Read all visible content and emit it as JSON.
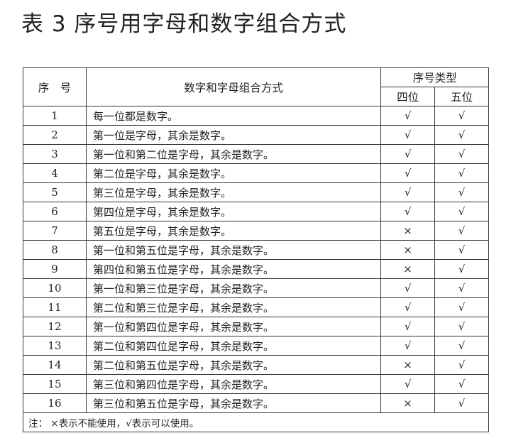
{
  "title": "表 3 序号用字母和数字组合方式",
  "table": {
    "headers": {
      "seq": "序　号",
      "combo": "数字和字母组合方式",
      "type_group": "序号类型",
      "four": "四位",
      "five": "五位"
    },
    "rows": [
      {
        "no": "1",
        "desc": "每一位都是数字。",
        "four": "√",
        "five": "√"
      },
      {
        "no": "2",
        "desc": "第一位是字母，其余是数字。",
        "four": "√",
        "five": "√"
      },
      {
        "no": "3",
        "desc": "第一位和第二位是字母，其余是数字。",
        "four": "√",
        "five": "√"
      },
      {
        "no": "4",
        "desc": "第二位是字母，其余是数字。",
        "four": "√",
        "five": "√"
      },
      {
        "no": "5",
        "desc": "第三位是字母，其余是数字。",
        "four": "√",
        "five": "√"
      },
      {
        "no": "6",
        "desc": "第四位是字母，其余是数字。",
        "four": "√",
        "five": "√"
      },
      {
        "no": "7",
        "desc": "第五位是字母，其余是数字。",
        "four": "×",
        "five": "√"
      },
      {
        "no": "8",
        "desc": "第一位和第五位是字母，其余是数字。",
        "four": "×",
        "five": "√"
      },
      {
        "no": "9",
        "desc": "第四位和第五位是字母，其余是数字。",
        "four": "×",
        "five": "√"
      },
      {
        "no": "10",
        "desc": "第一位和第三位是字母，其余是数字。",
        "four": "√",
        "five": "√"
      },
      {
        "no": "11",
        "desc": "第二位和第三位是字母，其余是数字。",
        "four": "√",
        "five": "√"
      },
      {
        "no": "12",
        "desc": "第一位和第四位是字母，其余是数字。",
        "four": "√",
        "five": "√"
      },
      {
        "no": "13",
        "desc": "第二位和第四位是字母，其余是数字。",
        "four": "√",
        "five": "√"
      },
      {
        "no": "14",
        "desc": "第二位和第五位是字母，其余是数字。",
        "four": "×",
        "five": "√"
      },
      {
        "no": "15",
        "desc": "第三位和第四位是字母，其余是数字。",
        "four": "√",
        "five": "√"
      },
      {
        "no": "16",
        "desc": "第三位和第五位是字母，其余是数字。",
        "four": "×",
        "five": "√"
      }
    ],
    "note": "注：  ×表示不能使用，√表示可以使用。"
  }
}
